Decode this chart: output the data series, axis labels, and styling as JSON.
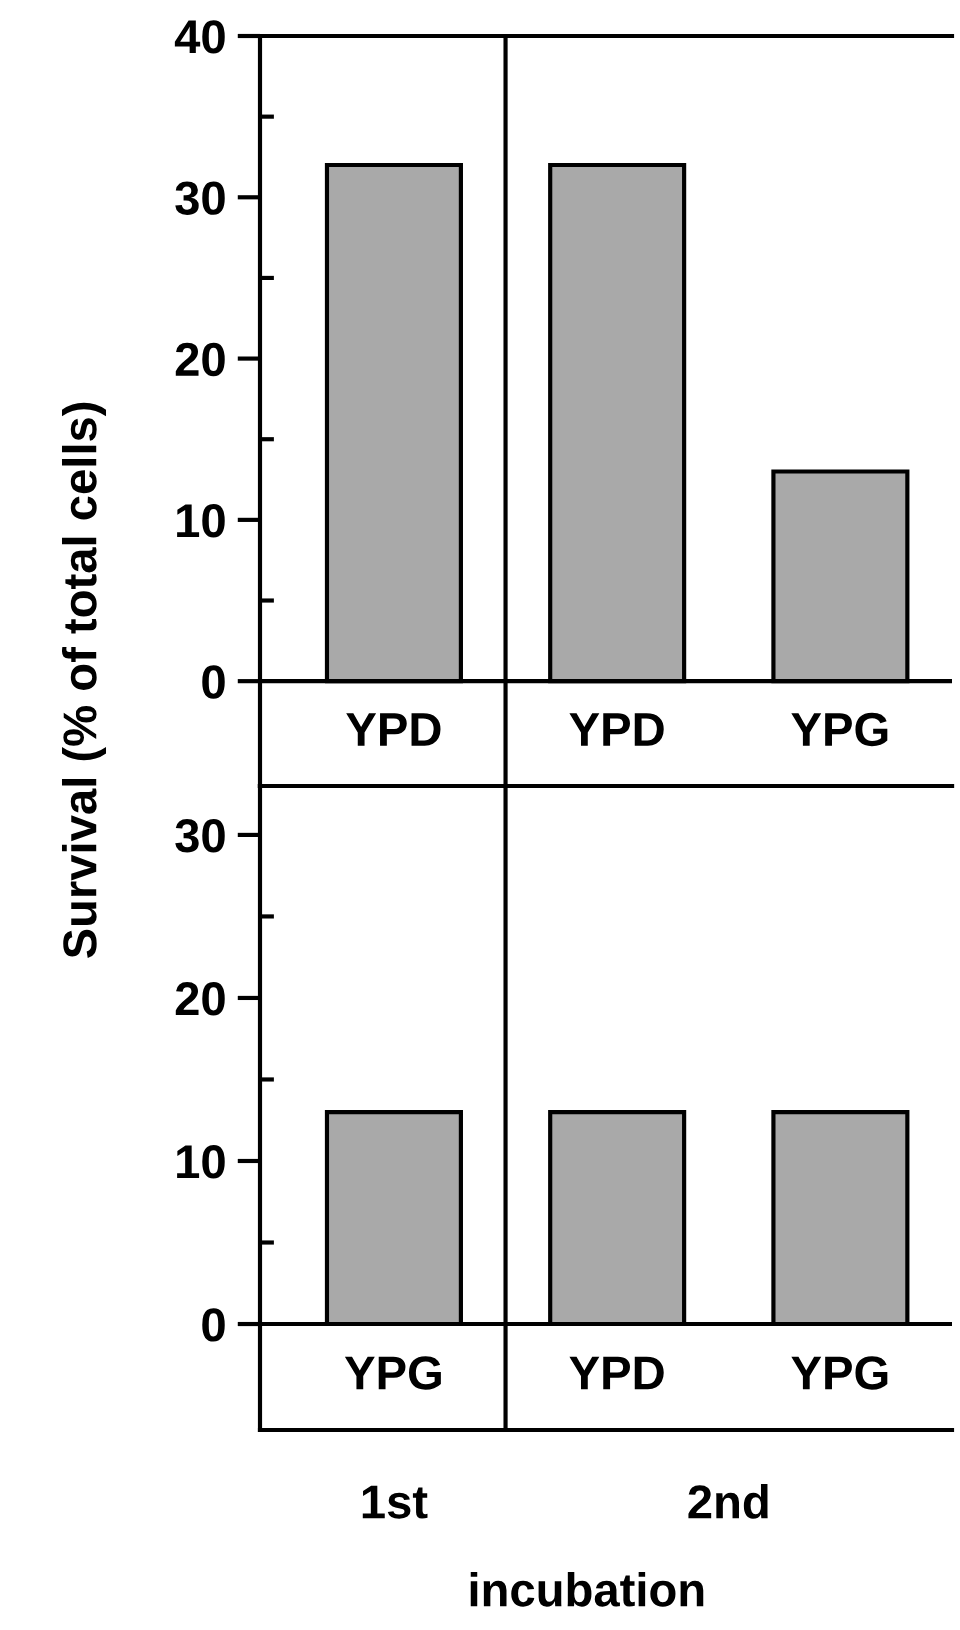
{
  "chart_data": [
    {
      "type": "bar",
      "ylabel": "Survival (% of total cells)",
      "categories": [
        "YPD",
        "YPD",
        "YPG"
      ],
      "values": [
        32,
        32,
        13
      ],
      "color": "#a9a9a9",
      "ylim": [
        -6.5,
        40
      ],
      "yticks": [
        0,
        10,
        20,
        30,
        40
      ],
      "grid": false,
      "legend": false
    },
    {
      "type": "bar",
      "categories": [
        "YPG",
        "YPD",
        "YPG"
      ],
      "values": [
        13,
        13,
        13
      ],
      "color": "#a9a9a9",
      "ylim": [
        -6.5,
        33
      ],
      "yticks": [
        0,
        10,
        20,
        30
      ],
      "xlabel": "incubation",
      "annotations": [
        "1st",
        "2nd"
      ],
      "grid": false,
      "legend": false
    }
  ]
}
